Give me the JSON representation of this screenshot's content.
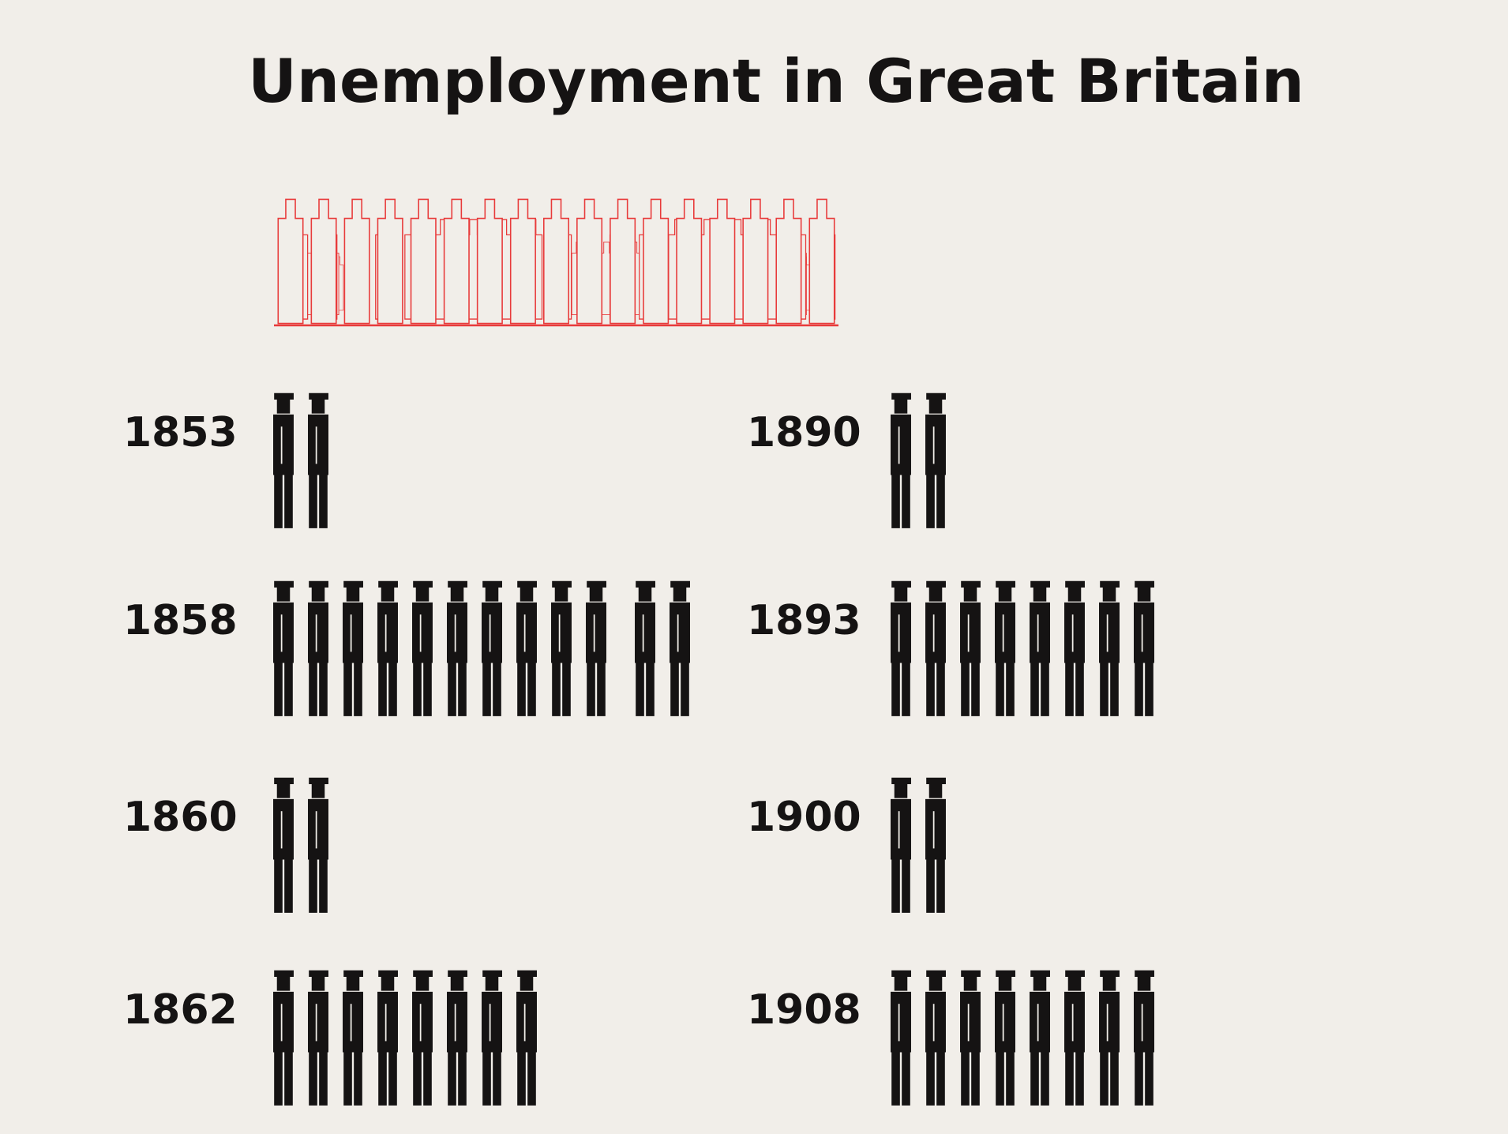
{
  "chart_data": {
    "type": "pictogram",
    "title": "Unemployment in Great Britain",
    "categories": [
      "1853",
      "1858",
      "1860",
      "1862",
      "1890",
      "1893",
      "1900",
      "1908"
    ],
    "values": [
      2,
      12,
      2,
      8,
      2,
      8,
      2,
      8
    ],
    "color": "#151313"
  }
}
